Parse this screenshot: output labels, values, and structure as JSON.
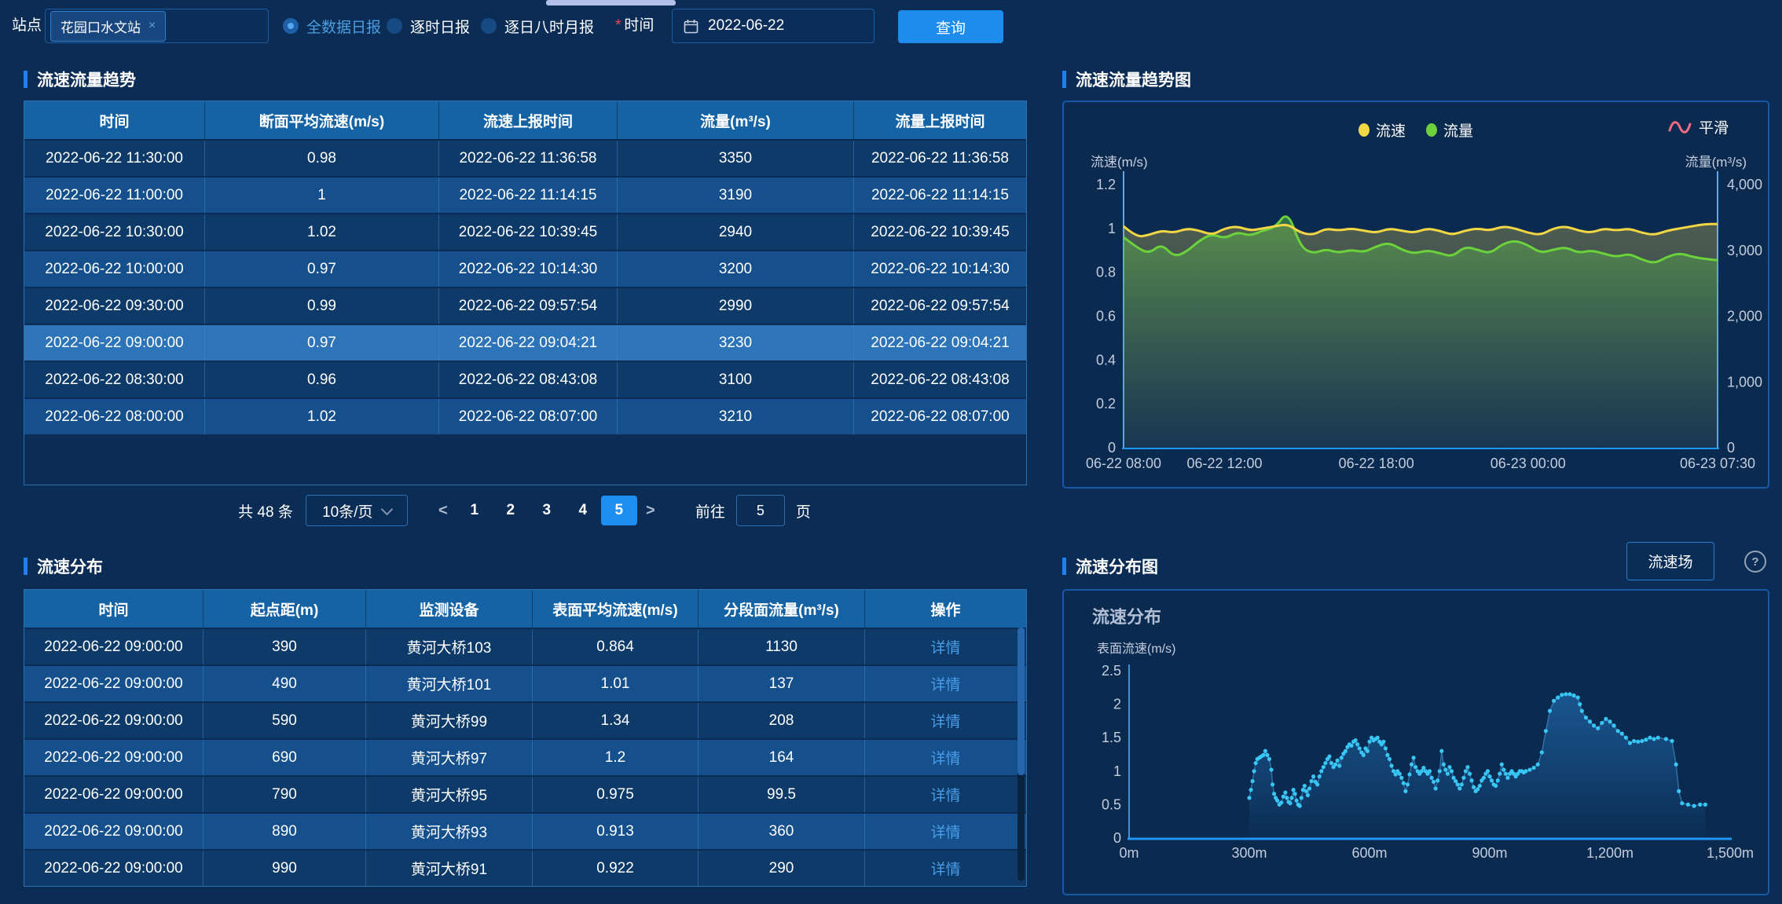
{
  "topbar": {
    "station_label": "站点",
    "station_tag": "花园口水文站",
    "tag_close": "×",
    "radios": [
      {
        "label": "全数据日报",
        "selected": true
      },
      {
        "label": "逐时日报",
        "selected": false
      },
      {
        "label": "逐日八时月报",
        "selected": false
      }
    ],
    "required_mark": "*",
    "time_label": "时间",
    "date_value": "2022-06-22",
    "query_label": "查询"
  },
  "left": {
    "section1_title": "流速流量趋势",
    "table1": {
      "headers": [
        "时间",
        "断面平均流速(m/s)",
        "流速上报时间",
        "流量(m³/s)",
        "流量上报时间"
      ],
      "selected_row": 5,
      "rows": [
        [
          "2022-06-22 11:30:00",
          "0.98",
          "2022-06-22 11:36:58",
          "3350",
          "2022-06-22 11:36:58"
        ],
        [
          "2022-06-22 11:00:00",
          "1",
          "2022-06-22 11:14:15",
          "3190",
          "2022-06-22 11:14:15"
        ],
        [
          "2022-06-22 10:30:00",
          "1.02",
          "2022-06-22 10:39:45",
          "2940",
          "2022-06-22 10:39:45"
        ],
        [
          "2022-06-22 10:00:00",
          "0.97",
          "2022-06-22 10:14:30",
          "3200",
          "2022-06-22 10:14:30"
        ],
        [
          "2022-06-22 09:30:00",
          "0.99",
          "2022-06-22 09:57:54",
          "2990",
          "2022-06-22 09:57:54"
        ],
        [
          "2022-06-22 09:00:00",
          "0.97",
          "2022-06-22 09:04:21",
          "3230",
          "2022-06-22 09:04:21"
        ],
        [
          "2022-06-22 08:30:00",
          "0.96",
          "2022-06-22 08:43:08",
          "3100",
          "2022-06-22 08:43:08"
        ],
        [
          "2022-06-22 08:00:00",
          "1.02",
          "2022-06-22 08:07:00",
          "3210",
          "2022-06-22 08:07:00"
        ]
      ]
    },
    "pagination": {
      "total": "共 48 条",
      "page_size": "10条/页",
      "prev": "<",
      "next": ">",
      "pages": [
        "1",
        "2",
        "3",
        "4",
        "5"
      ],
      "active_page": "5",
      "goto_label": "前往",
      "goto_value": "5",
      "goto_suffix": "页"
    },
    "section2_title": "流速分布",
    "table2": {
      "headers": [
        "时间",
        "起点距(m)",
        "监测设备",
        "表面平均流速(m/s)",
        "分段面流量(m³/s)",
        "操作"
      ],
      "action_label": "详情",
      "rows": [
        [
          "2022-06-22 09:00:00",
          "390",
          "黄河大桥103",
          "0.864",
          "1130"
        ],
        [
          "2022-06-22 09:00:00",
          "490",
          "黄河大桥101",
          "1.01",
          "137"
        ],
        [
          "2022-06-22 09:00:00",
          "590",
          "黄河大桥99",
          "1.34",
          "208"
        ],
        [
          "2022-06-22 09:00:00",
          "690",
          "黄河大桥97",
          "1.2",
          "164"
        ],
        [
          "2022-06-22 09:00:00",
          "790",
          "黄河大桥95",
          "0.975",
          "99.5"
        ],
        [
          "2022-06-22 09:00:00",
          "890",
          "黄河大桥93",
          "0.913",
          "360"
        ],
        [
          "2022-06-22 09:00:00",
          "990",
          "黄河大桥91",
          "0.922",
          "290"
        ]
      ]
    }
  },
  "right": {
    "section3_title": "流速流量趋势图",
    "section4_title": "流速分布图",
    "field_button": "流速场",
    "help_icon": "?"
  },
  "chart_data": [
    {
      "type": "line",
      "title": "流速流量趋势图",
      "legend": [
        {
          "name": "流速",
          "color": "#f2d643"
        },
        {
          "name": "流量",
          "color": "#6bd23c"
        }
      ],
      "smooth_label": "平滑",
      "smooth_color": "#f26d84",
      "y_left": {
        "label": "流速(m/s)",
        "min": 0,
        "max": 1.2,
        "ticks": [
          "1.2",
          "1",
          "0.8",
          "0.6",
          "0.4",
          "0.2",
          "0"
        ]
      },
      "y_right": {
        "label": "流量(m³/s)",
        "min": 0,
        "max": 4000,
        "ticks": [
          "4,000",
          "3,000",
          "2,000",
          "1,000",
          "0"
        ]
      },
      "x_ticks": [
        "06-22 08:00",
        "06-22 12:00",
        "06-22 18:00",
        "06-23 00:00",
        "06-23 07:30"
      ],
      "x_tick_pos": [
        0,
        0.17,
        0.4255,
        0.6809,
        1
      ],
      "series": [
        {
          "name": "流速",
          "axis": "left",
          "color": "#f2d643",
          "values": [
            1.01,
            0.96,
            0.97,
            0.99,
            0.98,
            1.0,
            0.99,
            0.97,
            1.0,
            1.01,
            0.99,
            1.0,
            1.01,
            1.02,
            0.98,
            0.97,
            1.0,
            0.99,
            1.0,
            0.99,
            0.98,
            1.0,
            0.99,
            0.98,
            1.0,
            0.99,
            0.97,
            0.99,
            1.0,
            0.99,
            1.01,
            1.0,
            0.98,
            0.97,
            1.0,
            1.01,
            0.99,
            0.98,
            1.0,
            0.99,
            1.0,
            0.98,
            0.97,
            0.99,
            1.0,
            1.01,
            1.02,
            1.02
          ]
        },
        {
          "name": "流量",
          "axis": "right",
          "color": "#6bd23c",
          "values": [
            3200,
            3050,
            2950,
            3100,
            2900,
            2980,
            3150,
            3250,
            3180,
            3280,
            3220,
            3300,
            3350,
            3600,
            3050,
            2950,
            3020,
            2960,
            3010,
            2970,
            3060,
            3120,
            3010,
            2950,
            3000,
            2960,
            2900,
            3060,
            3010,
            2950,
            3100,
            3150,
            3080,
            2960,
            3010,
            3050,
            2960,
            3000,
            2950,
            2900,
            2950,
            2860,
            2800,
            2900,
            2960,
            2900,
            2870,
            2850
          ]
        }
      ]
    },
    {
      "type": "scatter",
      "title": "流速分布",
      "ylabel": "表面流速(m/s)",
      "y": {
        "min": 0,
        "max": 2.5,
        "ticks": [
          "2.5",
          "2",
          "1.5",
          "1",
          "0.5",
          "0"
        ]
      },
      "x_ticks": [
        "0m",
        "300m",
        "600m",
        "900m",
        "1,200m",
        "1,500m"
      ],
      "x_range": [
        0,
        1500
      ],
      "point_color": "#38c6f4",
      "points": [
        [
          300,
          0.6
        ],
        [
          304,
          0.72
        ],
        [
          308,
          0.85
        ],
        [
          312,
          1.0
        ],
        [
          316,
          1.12
        ],
        [
          320,
          1.18
        ],
        [
          325,
          1.2
        ],
        [
          330,
          1.22
        ],
        [
          335,
          1.24
        ],
        [
          340,
          1.3
        ],
        [
          345,
          1.24
        ],
        [
          350,
          1.18
        ],
        [
          355,
          1.02
        ],
        [
          358,
          0.8
        ],
        [
          362,
          0.66
        ],
        [
          366,
          0.6
        ],
        [
          370,
          0.56
        ],
        [
          375,
          0.5
        ],
        [
          380,
          0.53
        ],
        [
          385,
          0.62
        ],
        [
          390,
          0.68
        ],
        [
          394,
          0.6
        ],
        [
          398,
          0.54
        ],
        [
          402,
          0.52
        ],
        [
          406,
          0.6
        ],
        [
          410,
          0.72
        ],
        [
          414,
          0.66
        ],
        [
          418,
          0.56
        ],
        [
          422,
          0.5
        ],
        [
          426,
          0.48
        ],
        [
          430,
          0.6
        ],
        [
          434,
          0.72
        ],
        [
          438,
          0.78
        ],
        [
          442,
          0.7
        ],
        [
          446,
          0.64
        ],
        [
          450,
          0.74
        ],
        [
          455,
          0.85
        ],
        [
          460,
          0.92
        ],
        [
          465,
          0.84
        ],
        [
          470,
          0.8
        ],
        [
          475,
          0.92
        ],
        [
          480,
          1.0
        ],
        [
          485,
          1.06
        ],
        [
          490,
          1.12
        ],
        [
          495,
          1.18
        ],
        [
          500,
          1.22
        ],
        [
          505,
          1.12
        ],
        [
          510,
          1.06
        ],
        [
          515,
          1.1
        ],
        [
          520,
          1.16
        ],
        [
          525,
          1.08
        ],
        [
          530,
          1.2
        ],
        [
          535,
          1.26
        ],
        [
          540,
          1.3
        ],
        [
          545,
          1.36
        ],
        [
          550,
          1.4
        ],
        [
          555,
          1.38
        ],
        [
          560,
          1.44
        ],
        [
          565,
          1.46
        ],
        [
          570,
          1.4
        ],
        [
          575,
          1.34
        ],
        [
          580,
          1.28
        ],
        [
          585,
          1.24
        ],
        [
          590,
          1.34
        ],
        [
          595,
          1.3
        ],
        [
          600,
          1.44
        ],
        [
          605,
          1.5
        ],
        [
          610,
          1.46
        ],
        [
          615,
          1.48
        ],
        [
          620,
          1.5
        ],
        [
          625,
          1.44
        ],
        [
          630,
          1.4
        ],
        [
          635,
          1.44
        ],
        [
          640,
          1.34
        ],
        [
          645,
          1.24
        ],
        [
          650,
          1.18
        ],
        [
          655,
          1.08
        ],
        [
          660,
          1.0
        ],
        [
          665,
          0.95
        ],
        [
          670,
          1.0
        ],
        [
          675,
          0.96
        ],
        [
          680,
          0.9
        ],
        [
          685,
          0.82
        ],
        [
          690,
          0.7
        ],
        [
          695,
          0.8
        ],
        [
          700,
          0.95
        ],
        [
          705,
          1.1
        ],
        [
          710,
          1.2
        ],
        [
          715,
          1.06
        ],
        [
          720,
          1.0
        ],
        [
          725,
          0.96
        ],
        [
          730,
          1.0
        ],
        [
          735,
          1.05
        ],
        [
          740,
          1.0
        ],
        [
          745,
          0.96
        ],
        [
          750,
          1.0
        ],
        [
          755,
          0.9
        ],
        [
          760,
          0.84
        ],
        [
          765,
          0.74
        ],
        [
          770,
          0.86
        ],
        [
          775,
          1.0
        ],
        [
          780,
          1.3
        ],
        [
          785,
          1.1
        ],
        [
          790,
          1.02
        ],
        [
          795,
          0.96
        ],
        [
          800,
          1.06
        ],
        [
          805,
          1.0
        ],
        [
          810,
          0.9
        ],
        [
          815,
          0.85
        ],
        [
          820,
          0.8
        ],
        [
          825,
          0.74
        ],
        [
          830,
          0.8
        ],
        [
          835,
          0.9
        ],
        [
          840,
          1.0
        ],
        [
          845,
          1.06
        ],
        [
          850,
          0.96
        ],
        [
          855,
          0.86
        ],
        [
          860,
          0.76
        ],
        [
          865,
          0.7
        ],
        [
          870,
          0.73
        ],
        [
          875,
          0.78
        ],
        [
          880,
          0.86
        ],
        [
          885,
          0.9
        ],
        [
          890,
          0.96
        ],
        [
          895,
          1.0
        ],
        [
          900,
          0.92
        ],
        [
          905,
          0.86
        ],
        [
          910,
          0.8
        ],
        [
          915,
          0.78
        ],
        [
          920,
          0.86
        ],
        [
          925,
          0.96
        ],
        [
          930,
          1.1
        ],
        [
          935,
          1.02
        ],
        [
          940,
          0.96
        ],
        [
          945,
          0.9
        ],
        [
          950,
          0.96
        ],
        [
          955,
          1.0
        ],
        [
          960,
          0.96
        ],
        [
          965,
          0.92
        ],
        [
          970,
          0.96
        ],
        [
          975,
          1.0
        ],
        [
          980,
          1.0
        ],
        [
          985,
          0.98
        ],
        [
          990,
          1.0
        ],
        [
          1000,
          1.02
        ],
        [
          1010,
          1.05
        ],
        [
          1020,
          1.1
        ],
        [
          1030,
          1.28
        ],
        [
          1040,
          1.6
        ],
        [
          1050,
          1.9
        ],
        [
          1060,
          2.05
        ],
        [
          1070,
          2.1
        ],
        [
          1080,
          2.14
        ],
        [
          1090,
          2.15
        ],
        [
          1100,
          2.15
        ],
        [
          1110,
          2.13
        ],
        [
          1120,
          2.1
        ],
        [
          1125,
          2.0
        ],
        [
          1130,
          1.9
        ],
        [
          1140,
          1.8
        ],
        [
          1150,
          1.74
        ],
        [
          1160,
          1.68
        ],
        [
          1170,
          1.64
        ],
        [
          1180,
          1.72
        ],
        [
          1190,
          1.78
        ],
        [
          1200,
          1.74
        ],
        [
          1210,
          1.68
        ],
        [
          1220,
          1.6
        ],
        [
          1230,
          1.56
        ],
        [
          1240,
          1.5
        ],
        [
          1250,
          1.42
        ],
        [
          1260,
          1.45
        ],
        [
          1270,
          1.44
        ],
        [
          1280,
          1.45
        ],
        [
          1290,
          1.47
        ],
        [
          1300,
          1.5
        ],
        [
          1310,
          1.48
        ],
        [
          1320,
          1.5
        ],
        [
          1340,
          1.48
        ],
        [
          1355,
          1.45
        ],
        [
          1365,
          1.1
        ],
        [
          1372,
          0.7
        ],
        [
          1380,
          0.52
        ],
        [
          1395,
          0.5
        ],
        [
          1410,
          0.48
        ],
        [
          1425,
          0.5
        ],
        [
          1438,
          0.5
        ]
      ]
    }
  ]
}
